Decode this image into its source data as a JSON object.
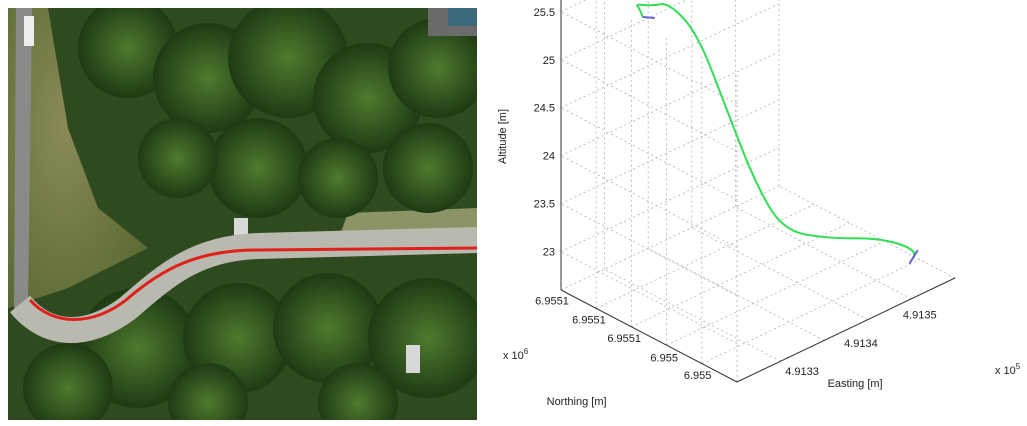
{
  "aerial_photo": {
    "path_color": "#e0201a"
  },
  "chart_data": {
    "type": "line",
    "projection": "3d",
    "xlabel": "Easting [m]",
    "ylabel": "Northing [m]",
    "zlabel": "Altitude [m]",
    "x_exponent_label": "x 10",
    "x_exponent": "5",
    "y_exponent_label": "x 10",
    "y_exponent": "6",
    "x_ticks": [
      "4.9133",
      "4.9134",
      "4.9135"
    ],
    "y_ticks": [
      "6.955",
      "6.955",
      "6.9551",
      "6.9551",
      "6.9551"
    ],
    "z_ticks": [
      "23",
      "23.5",
      "24",
      "24.5",
      "25",
      "25.5"
    ],
    "zlim": [
      22.6,
      25.8
    ],
    "grid": true,
    "series": [
      {
        "color": "#33dd55",
        "end_color": "#6666cc",
        "points": [
          [
            4.91328,
            6.95505,
            25.55
          ],
          [
            4.9133,
            6.95506,
            25.45
          ],
          [
            4.91332,
            6.95507,
            25.3
          ],
          [
            4.91334,
            6.95507,
            25.2
          ],
          [
            4.91336,
            6.95507,
            25.15
          ],
          [
            4.91337,
            6.95506,
            24.9
          ],
          [
            4.91338,
            6.95505,
            24.2
          ],
          [
            4.91339,
            6.95504,
            23.5
          ],
          [
            4.9134,
            6.95503,
            23.05
          ],
          [
            4.91343,
            6.95502,
            22.95
          ],
          [
            4.91347,
            6.95501,
            22.9
          ],
          [
            4.91349,
            6.955,
            22.8
          ],
          [
            4.91348,
            6.955,
            22.7
          ]
        ]
      }
    ]
  }
}
